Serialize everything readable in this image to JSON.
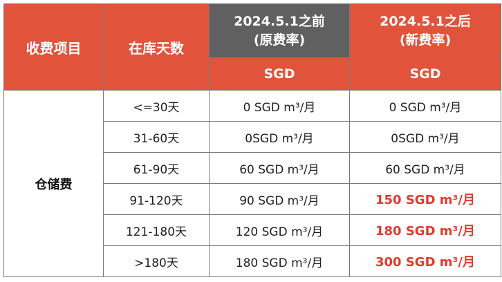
{
  "header": {
    "item_label": "收费项目",
    "days_label": "在库天数",
    "old_rate_line1": "2024.5.1之前",
    "old_rate_line2": "(原费率)",
    "new_rate_line1": "2024.5.1之后",
    "new_rate_line2": "(新费率)",
    "old_unit": "SGD",
    "new_unit": "SGD"
  },
  "category": "仓储费",
  "rows": [
    {
      "days": "<=30天",
      "old": "0 SGD m³/月",
      "new": "0 SGD m³/月",
      "highlight": false
    },
    {
      "days": "31-60天",
      "old": "0SGD m³/月",
      "new": "0SGD m³/月",
      "highlight": false
    },
    {
      "days": "61-90天",
      "old": "60 SGD m³/月",
      "new": "60 SGD m³/月",
      "highlight": false
    },
    {
      "days": "91-120天",
      "old": "90 SGD m³/月",
      "new": "150 SGD m³/月",
      "highlight": true
    },
    {
      "days": "121-180天",
      "old": "120 SGD m³/月",
      "new": "180 SGD m³/月",
      "highlight": true
    },
    {
      "days": ">180天",
      "old": "180 SGD m³/月",
      "new": "300 SGD m³/月",
      "highlight": true
    }
  ],
  "colors": {
    "header_red": "#e1533b",
    "header_gray": "#606060",
    "highlight_red": "#e03a2e"
  }
}
